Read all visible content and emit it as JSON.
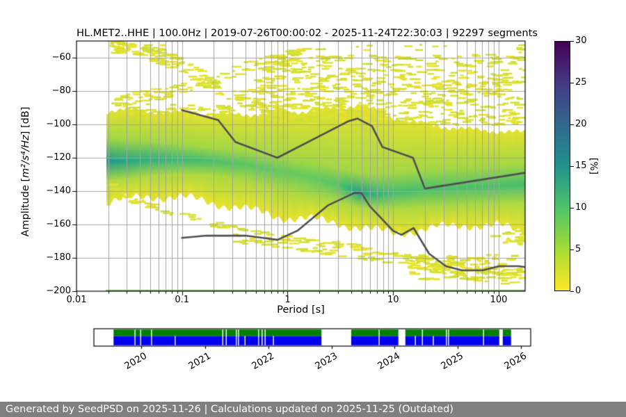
{
  "chart_data": {
    "type": "heatmap",
    "title": "HL.MET2..HHE | 100.0Hz | 2019-07-26T00:00:02 - 2025-11-24T22:30:03 | 92297 segments",
    "xlabel": "Period [s]",
    "ylabel_pre": "Amplitude [",
    "ylabel_math": "m²/s⁴/Hz",
    "ylabel_post": "] [dB]",
    "xscale": "log",
    "xlim": [
      0.01,
      178
    ],
    "ylim": [
      -200,
      -50
    ],
    "x_ticks": [
      {
        "label": "0.01",
        "value": 0.01
      },
      {
        "label": "0.1",
        "value": 0.1
      },
      {
        "label": "1",
        "value": 1
      },
      {
        "label": "10",
        "value": 10
      },
      {
        "label": "100",
        "value": 100
      }
    ],
    "y_ticks": [
      {
        "label": "−60",
        "value": -60
      },
      {
        "label": "−80",
        "value": -80
      },
      {
        "label": "−100",
        "value": -100
      },
      {
        "label": "−120",
        "value": -120
      },
      {
        "label": "−140",
        "value": -140
      },
      {
        "label": "−160",
        "value": -160
      },
      {
        "label": "−180",
        "value": -180
      },
      {
        "label": "−200",
        "value": -200
      }
    ],
    "grid": {
      "color": "#a3a3a3"
    },
    "colorbar": {
      "label": "[%]",
      "min": 0,
      "max": 30,
      "ticks": [
        0,
        5,
        10,
        15,
        20,
        25,
        30
      ],
      "colormap": "viridis_r",
      "stops": [
        {
          "v": 0,
          "c": "#fde725"
        },
        {
          "v": 5,
          "c": "#a5db36"
        },
        {
          "v": 10,
          "c": "#4ec36b"
        },
        {
          "v": 15,
          "c": "#21918c"
        },
        {
          "v": 20,
          "c": "#31688e"
        },
        {
          "v": 25,
          "c": "#443983"
        },
        {
          "v": 30,
          "c": "#440154"
        }
      ]
    },
    "noise_models": {
      "color": "#4f4f4f",
      "width": 2.6,
      "nhnm": [
        [
          0.1,
          -91.5
        ],
        [
          0.22,
          -97.4
        ],
        [
          0.32,
          -110.5
        ],
        [
          0.8,
          -120.0
        ],
        [
          3.8,
          -98.0
        ],
        [
          4.6,
          -96.5
        ],
        [
          6.3,
          -101.0
        ],
        [
          7.9,
          -113.5
        ],
        [
          15.4,
          -120.0
        ],
        [
          20.0,
          -138.5
        ],
        [
          178.0,
          -129.0
        ]
      ],
      "nlnm": [
        [
          0.1,
          -168.0
        ],
        [
          0.17,
          -166.7
        ],
        [
          0.4,
          -166.7
        ],
        [
          0.8,
          -169.2
        ],
        [
          1.24,
          -163.7
        ],
        [
          2.4,
          -148.6
        ],
        [
          4.3,
          -141.1
        ],
        [
          5.0,
          -141.1
        ],
        [
          6.0,
          -149.0
        ],
        [
          10.0,
          -163.8
        ],
        [
          12.0,
          -166.2
        ],
        [
          15.6,
          -162.1
        ],
        [
          21.9,
          -177.5
        ],
        [
          31.6,
          -185.0
        ],
        [
          45.0,
          -187.5
        ],
        [
          70.0,
          -187.5
        ],
        [
          101.0,
          -185.0
        ],
        [
          154.0,
          -185.0
        ],
        [
          178.0,
          -185.5
        ]
      ]
    },
    "baseline": {
      "color": "#67c04a",
      "db": -199.6,
      "p_start": 0.019
    },
    "data_p_min": 0.019,
    "density_profile": [
      {
        "p": 0.019,
        "top": -92,
        "g_top": -108,
        "center": -122,
        "g_bot": -134,
        "bot": -147,
        "core": 12
      },
      {
        "p": 0.03,
        "top": -91,
        "g_top": -109,
        "center": -122,
        "g_bot": -133,
        "bot": -145,
        "core": 10
      },
      {
        "p": 0.05,
        "top": -92,
        "g_top": -110,
        "center": -121,
        "g_bot": -131,
        "bot": -143,
        "core": 8.5
      },
      {
        "p": 0.1,
        "top": -93,
        "g_top": -112,
        "center": -121,
        "g_bot": -130,
        "bot": -144,
        "core": 7
      },
      {
        "p": 0.2,
        "top": -94,
        "g_top": -114,
        "center": -122,
        "g_bot": -131,
        "bot": -147,
        "core": 6
      },
      {
        "p": 0.4,
        "top": -94,
        "g_top": -116,
        "center": -124,
        "g_bot": -134,
        "bot": -151,
        "core": 5
      },
      {
        "p": 0.8,
        "top": -93,
        "g_top": -119,
        "center": -128,
        "g_bot": -139,
        "bot": -155,
        "core": 4.5
      },
      {
        "p": 1.5,
        "top": -92,
        "g_top": -122,
        "center": -131,
        "g_bot": -143,
        "bot": -157,
        "core": 4.2
      },
      {
        "p": 3.0,
        "top": -90,
        "g_top": -126,
        "center": -136,
        "g_bot": -147,
        "bot": -159,
        "core": 5.5
      },
      {
        "p": 4.8,
        "top": -88,
        "g_top": -129,
        "center": -141,
        "g_bot": -150,
        "bot": -162,
        "core": 11
      },
      {
        "p": 7.0,
        "top": -92,
        "g_top": -130,
        "center": -142,
        "g_bot": -151,
        "bot": -164,
        "core": 8
      },
      {
        "p": 10,
        "top": -96,
        "g_top": -129,
        "center": -141,
        "g_bot": -151,
        "bot": -165,
        "core": 6.5
      },
      {
        "p": 20,
        "top": -100,
        "g_top": -127,
        "center": -139,
        "g_bot": -150,
        "bot": -163,
        "core": 6
      },
      {
        "p": 50,
        "top": -103,
        "g_top": -126,
        "center": -138,
        "g_bot": -149,
        "bot": -160,
        "core": 6
      },
      {
        "p": 100,
        "top": -104,
        "g_top": -125,
        "center": -137,
        "g_bot": -148,
        "bot": -161,
        "core": 6
      },
      {
        "p": 178,
        "top": -105,
        "g_top": -124,
        "center": -136,
        "g_bot": -147,
        "bot": -165,
        "core": 6.5
      }
    ],
    "outlier_streaks": [
      {
        "pts": [
          [
            0.024,
            -53
          ],
          [
            0.05,
            -57
          ],
          [
            0.1,
            -65
          ],
          [
            0.17,
            -74
          ]
        ],
        "th": 4.5,
        "d": 0.85
      },
      {
        "pts": [
          [
            0.17,
            -74
          ],
          [
            0.3,
            -81
          ],
          [
            0.6,
            -90
          ],
          [
            1.0,
            -94
          ]
        ],
        "th": 5,
        "d": 0.7
      },
      {
        "pts": [
          [
            0.021,
            -86
          ],
          [
            0.06,
            -82
          ],
          [
            0.17,
            -75
          ]
        ],
        "th": 3.5,
        "d": 0.75
      },
      {
        "pts": [
          [
            0.17,
            -75
          ],
          [
            0.4,
            -66
          ],
          [
            0.9,
            -60
          ],
          [
            1.8,
            -57
          ]
        ],
        "th": 3.5,
        "d": 0.6
      },
      {
        "pts": [
          [
            0.021,
            -54
          ],
          [
            0.07,
            -56
          ]
        ],
        "th": 3.5,
        "d": 0.95
      },
      {
        "pts": [
          [
            0.02,
            -91
          ],
          [
            0.3,
            -92
          ]
        ],
        "th": 3.5,
        "d": 0.5
      },
      {
        "pts": [
          [
            0.5,
            -63
          ],
          [
            178,
            -62
          ]
        ],
        "th": 4,
        "d": 0.45
      },
      {
        "pts": [
          [
            0.45,
            -71
          ],
          [
            178,
            -71
          ]
        ],
        "th": 4.5,
        "d": 0.5
      },
      {
        "pts": [
          [
            0.45,
            -80
          ],
          [
            178,
            -80
          ]
        ],
        "th": 4.5,
        "d": 0.55
      },
      {
        "pts": [
          [
            0.45,
            -89
          ],
          [
            178,
            -89
          ]
        ],
        "th": 4.5,
        "d": 0.55
      },
      {
        "pts": [
          [
            1.2,
            -97
          ],
          [
            178,
            -97
          ]
        ],
        "th": 3.5,
        "d": 0.6
      },
      {
        "pts": [
          [
            2,
            -54
          ],
          [
            178,
            -54
          ]
        ],
        "th": 2,
        "d": 0.12
      },
      {
        "pts": [
          [
            150,
            -55
          ],
          [
            178,
            -55
          ]
        ],
        "th": 2.5,
        "d": 0.7
      },
      {
        "pts": [
          [
            0.02,
            -134
          ],
          [
            0.03,
            -144
          ],
          [
            0.08,
            -153
          ],
          [
            0.3,
            -162
          ],
          [
            1,
            -168
          ],
          [
            3,
            -172
          ],
          [
            10,
            -177
          ],
          [
            30,
            -183
          ],
          [
            100,
            -188
          ],
          [
            178,
            -188
          ]
        ],
        "th": 1.8,
        "d": 0.8
      },
      {
        "pts": [
          [
            0.25,
            -167
          ],
          [
            1,
            -172
          ],
          [
            3,
            -176
          ],
          [
            10,
            -181
          ],
          [
            30,
            -187
          ],
          [
            100,
            -193
          ],
          [
            178,
            -191
          ]
        ],
        "th": 3,
        "d": 0.55
      },
      {
        "pts": [
          [
            15,
            -185
          ],
          [
            60,
            -186
          ],
          [
            178,
            -186
          ]
        ],
        "th": 8,
        "d": 0.45,
        "dh": 3
      },
      {
        "pts": [
          [
            90,
            -170
          ],
          [
            178,
            -167
          ]
        ],
        "th": 5,
        "d": 0.5,
        "dh": 3
      }
    ]
  },
  "timeline": {
    "colors": {
      "top": "#008000",
      "bottom": "#0000ee"
    },
    "segments_pct": [
      [
        4.5,
        52.1
      ],
      [
        58.9,
        69.7
      ],
      [
        71.3,
        92.8
      ],
      [
        93.6,
        95.5
      ]
    ],
    "gaps_both_pct": [
      9.4,
      10.7,
      13.2,
      29.5,
      30.3,
      32.6,
      33.1,
      37.7,
      38.5,
      39.2,
      65.3,
      75.2,
      80.7,
      81.2,
      89.2
    ],
    "gaps_blue_pct": [
      18.6,
      34.6,
      41.1,
      73.6,
      77.7
    ],
    "years": [
      {
        "label": "2020",
        "pct": 10.8
      },
      {
        "label": "2021",
        "pct": 25.4
      },
      {
        "label": "2022",
        "pct": 39.9
      },
      {
        "label": "2023",
        "pct": 54.4
      },
      {
        "label": "2024",
        "pct": 68.8
      },
      {
        "label": "2025",
        "pct": 83.3
      },
      {
        "label": "2026",
        "pct": 97.7
      }
    ]
  },
  "footer": {
    "text": "Generated by SeedPSD on 2025-11-26 | Calculations updated on 2025-11-25 (Outdated)",
    "bg": "#7f7f7f"
  }
}
